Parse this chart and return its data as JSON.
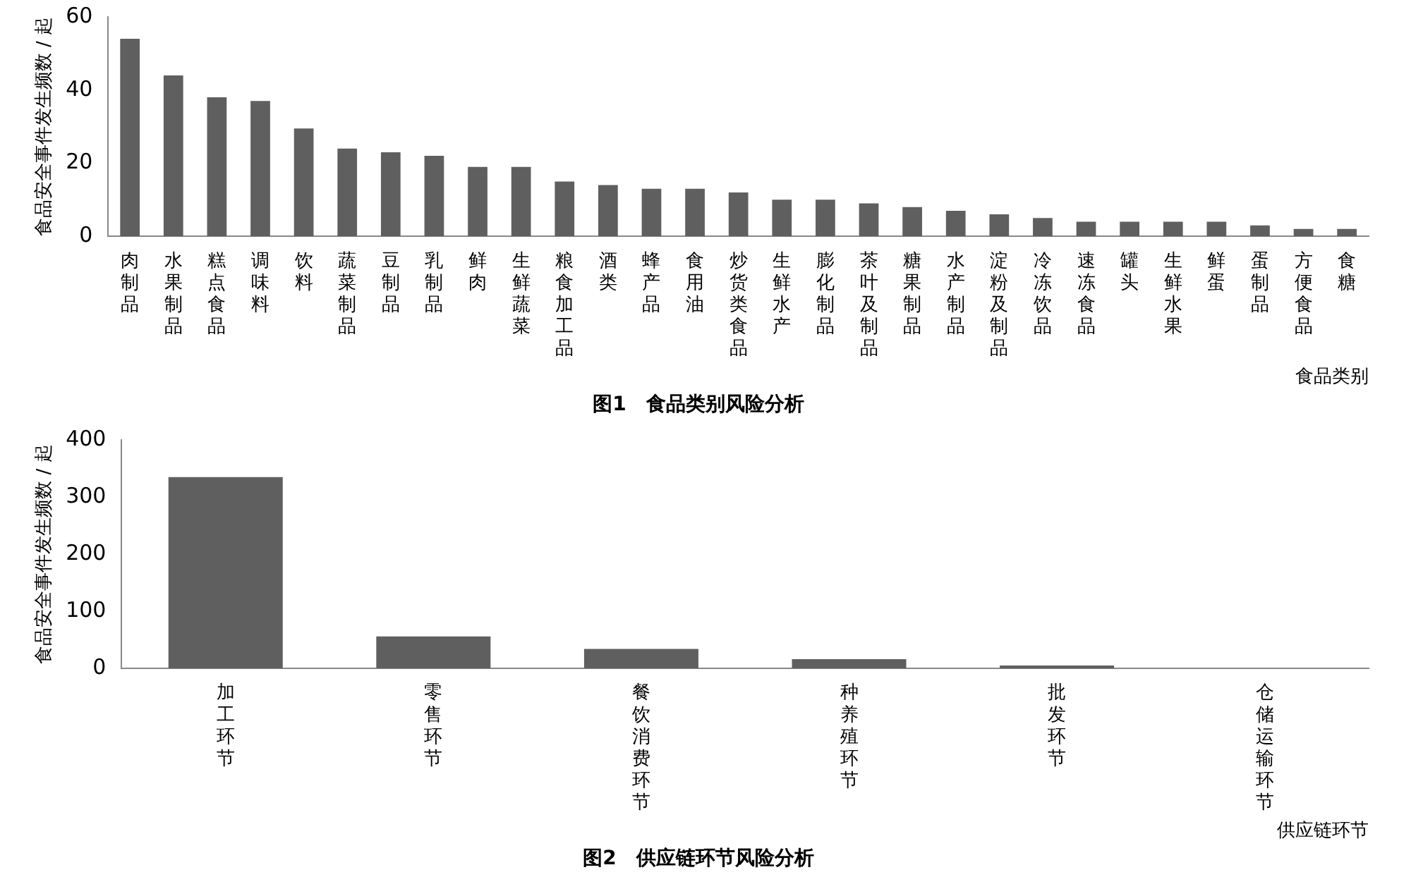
{
  "chart_data": [
    {
      "type": "bar",
      "title": "图1　食品类别风险分析",
      "xlabel": "食品类别",
      "ylabel": "食品安全事件发生频数 / 起",
      "categories": [
        "肉制品",
        "水果制品",
        "糕点食品",
        "调味料",
        "饮料",
        "蔬菜制品",
        "豆制品",
        "乳制品",
        "鲜肉",
        "生鲜蔬菜",
        "粮食加工品",
        "酒类",
        "蜂产品",
        "食用油",
        "炒货类食品",
        "生鲜水产",
        "膨化制品",
        "茶叶及制品",
        "糖果制品",
        "水产制品",
        "淀粉及制品",
        "冷冻饮品",
        "速冻食品",
        "罐头",
        "生鲜水果",
        "鲜蛋",
        "蛋制品",
        "方便食品",
        "食糖"
      ],
      "values": [
        54,
        44,
        38,
        37,
        29.5,
        24,
        23,
        22,
        19,
        19,
        15,
        14,
        13,
        13,
        12,
        10,
        10,
        9,
        8,
        7,
        6,
        5,
        4,
        4,
        4,
        4,
        3,
        2,
        2
      ],
      "color": "#5f5f5f",
      "ylim": [
        0,
        60
      ],
      "yticks": [
        0,
        20,
        40,
        60
      ],
      "grid": false,
      "legend": false
    },
    {
      "type": "bar",
      "title": "图2　供应链环节风险分析",
      "xlabel": "供应链环节",
      "ylabel": "食品安全事件发生频数 / 起",
      "categories": [
        "加工环节",
        "零售环节",
        "餐饮消费环节",
        "种养殖环节",
        "批发环节",
        "仓储运输环节"
      ],
      "values": [
        335,
        56,
        34,
        16,
        5,
        0
      ],
      "color": "#5f5f5f",
      "ylim": [
        0,
        400
      ],
      "yticks": [
        0,
        100,
        200,
        300,
        400
      ],
      "grid": false,
      "legend": false
    }
  ]
}
